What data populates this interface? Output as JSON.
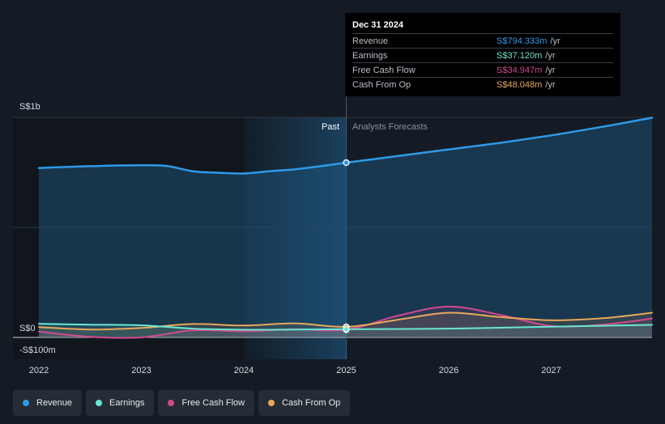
{
  "chart_data": {
    "type": "area",
    "x_ticks": [
      "2022",
      "2023",
      "2024",
      "2025",
      "2026",
      "2027"
    ],
    "x_range": [
      2021.99,
      2028.0
    ],
    "y_range": [
      -100,
      1000
    ],
    "y_tick_labels": {
      "top": "S$1b",
      "zero": "S$0",
      "bottom": "-S$100m"
    },
    "past_label": "Past",
    "forecast_label": "Analysts Forecasts",
    "divider_x": 2025.0,
    "highlight_start_x": 2024.0,
    "series": [
      {
        "name": "Revenue",
        "key": "revenue",
        "color": "#2f9ae8",
        "filled": true,
        "points": [
          [
            2022.0,
            770
          ],
          [
            2022.5,
            778
          ],
          [
            2023.0,
            782
          ],
          [
            2023.25,
            779
          ],
          [
            2023.5,
            755
          ],
          [
            2023.75,
            748
          ],
          [
            2024.0,
            745
          ],
          [
            2024.25,
            755
          ],
          [
            2024.5,
            764
          ],
          [
            2024.75,
            778
          ],
          [
            2025.0,
            794
          ],
          [
            2025.5,
            824
          ],
          [
            2026.0,
            854
          ],
          [
            2026.5,
            884
          ],
          [
            2027.0,
            918
          ],
          [
            2027.5,
            957
          ],
          [
            2028.0,
            998
          ]
        ]
      },
      {
        "name": "Earnings",
        "key": "earnings",
        "color": "#6be6d3",
        "filled": false,
        "points": [
          [
            2022.0,
            62
          ],
          [
            2022.5,
            58
          ],
          [
            2023.0,
            55
          ],
          [
            2023.5,
            40
          ],
          [
            2024.0,
            35
          ],
          [
            2024.5,
            36
          ],
          [
            2025.0,
            37
          ],
          [
            2026.0,
            40
          ],
          [
            2027.0,
            49
          ],
          [
            2028.0,
            57
          ]
        ]
      },
      {
        "name": "Free Cash Flow",
        "key": "fcf",
        "color": "#d14a8f",
        "filled": false,
        "points": [
          [
            2022.0,
            27
          ],
          [
            2022.5,
            3
          ],
          [
            2023.0,
            0
          ],
          [
            2023.5,
            32
          ],
          [
            2024.0,
            28
          ],
          [
            2024.5,
            37
          ],
          [
            2025.0,
            35
          ],
          [
            2025.5,
            98
          ],
          [
            2026.0,
            140
          ],
          [
            2026.5,
            103
          ],
          [
            2027.0,
            52
          ],
          [
            2027.5,
            58
          ],
          [
            2028.0,
            86
          ]
        ]
      },
      {
        "name": "Cash From Op",
        "key": "cfo",
        "color": "#e8a85a",
        "filled": false,
        "points": [
          [
            2022.0,
            47
          ],
          [
            2022.5,
            36
          ],
          [
            2023.0,
            43
          ],
          [
            2023.5,
            61
          ],
          [
            2024.0,
            54
          ],
          [
            2024.5,
            64
          ],
          [
            2025.0,
            48
          ],
          [
            2025.5,
            80
          ],
          [
            2026.0,
            112
          ],
          [
            2026.5,
            93
          ],
          [
            2027.0,
            78
          ],
          [
            2027.5,
            87
          ],
          [
            2028.0,
            112
          ]
        ]
      }
    ]
  },
  "tooltip": {
    "date": "Dec 31 2024",
    "rows": [
      {
        "name": "Revenue",
        "value": "S$794.333m",
        "unit": "/yr",
        "color": "#2f9ae8"
      },
      {
        "name": "Earnings",
        "value": "S$37.120m",
        "unit": "/yr",
        "color": "#6be6d3"
      },
      {
        "name": "Free Cash Flow",
        "value": "S$34.947m",
        "unit": "/yr",
        "color": "#d14a8f"
      },
      {
        "name": "Cash From Op",
        "value": "S$48.048m",
        "unit": "/yr",
        "color": "#e8a85a"
      }
    ]
  },
  "legend": [
    {
      "label": "Revenue",
      "color": "#2f9ae8"
    },
    {
      "label": "Earnings",
      "color": "#6be6d3"
    },
    {
      "label": "Free Cash Flow",
      "color": "#d14a8f"
    },
    {
      "label": "Cash From Op",
      "color": "#e8a85a"
    }
  ]
}
